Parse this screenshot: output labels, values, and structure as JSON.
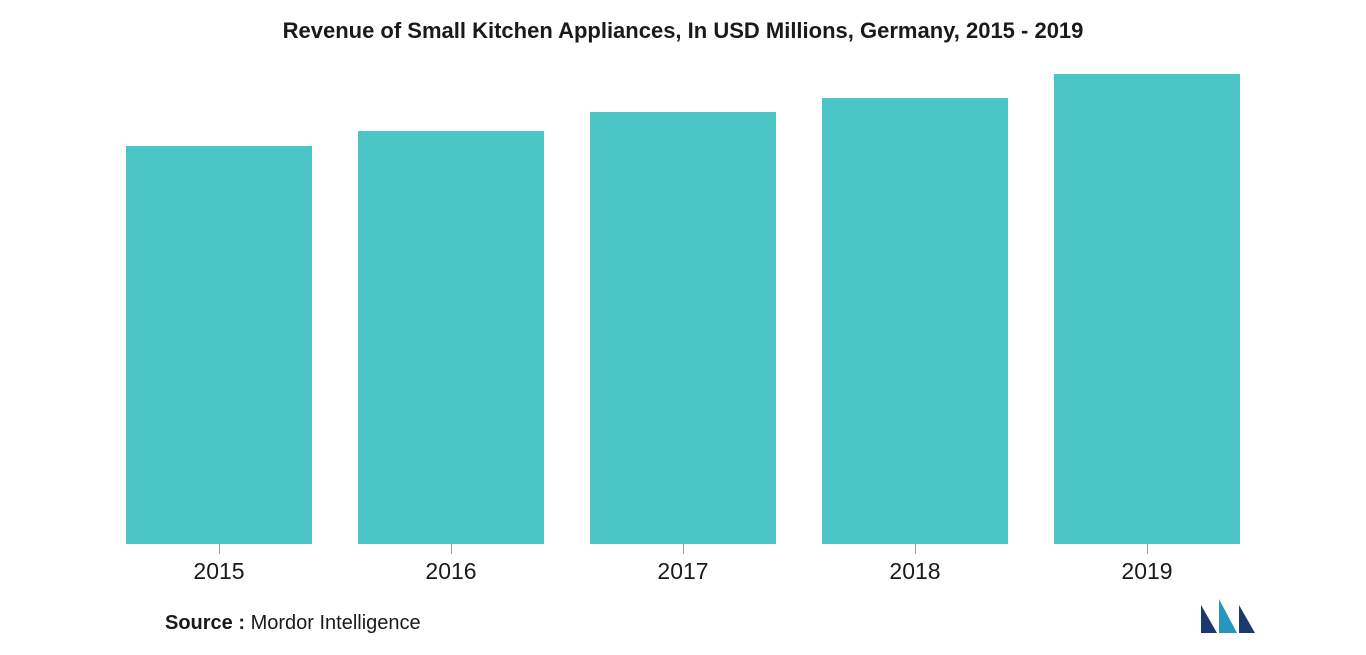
{
  "chart": {
    "type": "bar",
    "title": "Revenue of Small Kitchen Appliances, In USD Millions, Germany, 2015 - 2019",
    "title_fontsize": 22,
    "title_color": "#1a1a1a",
    "categories": [
      "2015",
      "2016",
      "2017",
      "2018",
      "2019"
    ],
    "values": [
      83,
      86,
      90,
      93,
      98
    ],
    "ylim": [
      0,
      100
    ],
    "bar_color": "#4bc5c5",
    "bar_width_pct": 80,
    "background_color": "#ffffff",
    "tick_color": "#999999",
    "xlabel_fontsize": 23,
    "xlabel_color": "#1a1a1a"
  },
  "source": {
    "label": "Source :",
    "text": " Mordor Intelligence",
    "fontsize": 20,
    "color": "#1a1a1a"
  },
  "logo": {
    "colors": {
      "bar1": "#1a3a6e",
      "bar2": "#2596be",
      "bar3": "#1a3a6e"
    }
  }
}
